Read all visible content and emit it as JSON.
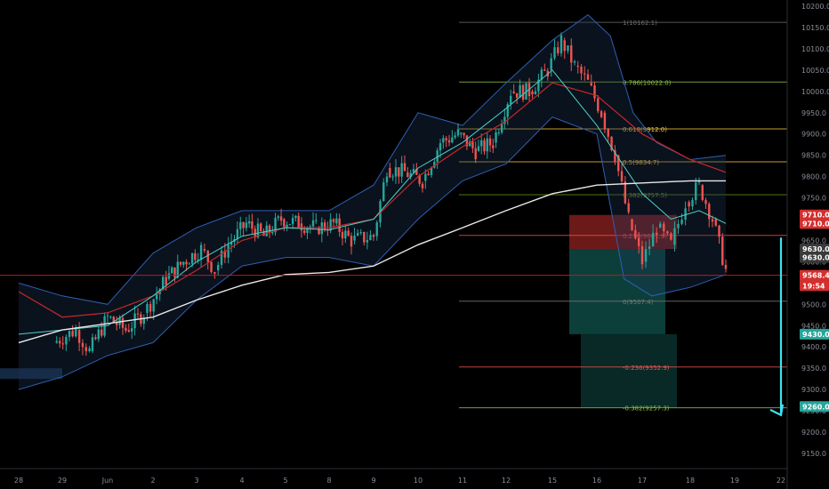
{
  "chart_data": {
    "type": "candlestick",
    "title": "",
    "xlabel": "",
    "ylabel": "",
    "ylim": [
      9120,
      10220
    ],
    "grid": false,
    "x_ticks": [
      "28",
      "29",
      "Jun",
      "2",
      "3",
      "4",
      "5",
      "8",
      "9",
      "10",
      "11",
      "12",
      "15",
      "16",
      "17",
      "18",
      "19",
      "22"
    ],
    "y_ticks": [
      9150.0,
      9200.0,
      9250.0,
      9300.0,
      9350.0,
      9400.0,
      9450.0,
      9500.0,
      9550.0,
      9600.0,
      9650.0,
      9700.0,
      9750.0,
      9800.0,
      9850.0,
      9900.0,
      9950.0,
      10000.0,
      10050.0,
      10100.0,
      10150.0,
      10200.0
    ],
    "y_tick_labels": [
      "9150.0",
      "9200.0",
      "9250.0",
      "9300.0",
      "9350.0",
      "9400.0",
      "9450.0",
      "9500.0",
      "9550.0",
      "9600.0",
      "9650.0",
      "9700.0",
      "9750.0",
      "9800.0",
      "9850.0",
      "9900.0",
      "9950.0",
      "10000.0",
      "10050.0",
      "10100.0",
      "10150.0",
      "10200.0"
    ],
    "colors": {
      "up": "#26a69a",
      "down": "#ef5350",
      "ma_white": "#e8e8e8",
      "ma_red": "#c62828",
      "ma_teal": "#4dd0c8",
      "bollinger": "#2f5fb3",
      "arrow": "#40e0f0",
      "stop_zone": "#7f1d1d",
      "target_zone": "#0e4a44",
      "price_line": "#b71c1c"
    },
    "price_series": {
      "dates": [
        "28",
        "29",
        "Jun",
        "2",
        "3",
        "4",
        "5",
        "8",
        "9",
        "10",
        "11",
        "12",
        "15"
      ],
      "close_path": [
        [
          27.8,
          9410
        ],
        [
          28.3,
          9440
        ],
        [
          28.6,
          9390
        ],
        [
          29.0,
          9470
        ],
        [
          29.4,
          9440
        ],
        [
          29.8,
          9480
        ],
        [
          30.3,
          9560
        ],
        [
          30.7,
          9600
        ],
        [
          31.1,
          9630
        ],
        [
          31.4,
          9580
        ],
        [
          31.7,
          9640
        ],
        [
          32.1,
          9690
        ],
        [
          32.5,
          9660
        ],
        [
          32.9,
          9700
        ],
        [
          33.3,
          9690
        ],
        [
          33.7,
          9680
        ],
        [
          34.1,
          9690
        ],
        [
          34.5,
          9650
        ],
        [
          35.0,
          9660
        ],
        [
          35.3,
          9820
        ],
        [
          35.7,
          9810
        ],
        [
          36.1,
          9790
        ],
        [
          36.5,
          9880
        ],
        [
          36.9,
          9900
        ],
        [
          37.3,
          9860
        ],
        [
          37.7,
          9880
        ],
        [
          38.1,
          10000
        ],
        [
          38.5,
          10000
        ],
        [
          38.9,
          10050
        ],
        [
          39.2,
          10120
        ],
        [
          39.5,
          10060
        ],
        [
          39.8,
          10020
        ],
        [
          40.1,
          9950
        ],
        [
          40.4,
          9850
        ],
        [
          40.7,
          9700
        ],
        [
          41.0,
          9600
        ],
        [
          41.3,
          9680
        ],
        [
          41.6,
          9640
        ],
        [
          41.9,
          9740
        ],
        [
          42.2,
          9780
        ],
        [
          42.5,
          9700
        ],
        [
          42.8,
          9580
        ]
      ],
      "ma_white_path": [
        [
          27.0,
          9410
        ],
        [
          28.0,
          9440
        ],
        [
          29.0,
          9455
        ],
        [
          30.0,
          9470
        ],
        [
          31.0,
          9510
        ],
        [
          32.0,
          9545
        ],
        [
          33.0,
          9570
        ],
        [
          34.0,
          9575
        ],
        [
          35.0,
          9590
        ],
        [
          36.0,
          9640
        ],
        [
          37.0,
          9680
        ],
        [
          38.0,
          9720
        ],
        [
          39.0,
          9760
        ],
        [
          40.0,
          9780
        ],
        [
          41.0,
          9785
        ],
        [
          42.0,
          9790
        ],
        [
          42.8,
          9790
        ]
      ],
      "ma_red_path": [
        [
          27.0,
          9530
        ],
        [
          28.0,
          9470
        ],
        [
          29.0,
          9480
        ],
        [
          30.0,
          9520
        ],
        [
          31.0,
          9580
        ],
        [
          32.0,
          9650
        ],
        [
          33.0,
          9680
        ],
        [
          34.0,
          9680
        ],
        [
          35.0,
          9700
        ],
        [
          36.0,
          9800
        ],
        [
          37.0,
          9870
        ],
        [
          38.0,
          9930
        ],
        [
          39.0,
          10020
        ],
        [
          40.0,
          9990
        ],
        [
          41.0,
          9900
        ],
        [
          42.0,
          9840
        ],
        [
          42.8,
          9810
        ]
      ],
      "ma_teal_path": [
        [
          27.0,
          9430
        ],
        [
          28.0,
          9440
        ],
        [
          29.0,
          9450
        ],
        [
          30.0,
          9520
        ],
        [
          31.0,
          9600
        ],
        [
          32.0,
          9660
        ],
        [
          33.0,
          9680
        ],
        [
          34.0,
          9675
        ],
        [
          35.0,
          9700
        ],
        [
          36.0,
          9820
        ],
        [
          37.0,
          9880
        ],
        [
          38.0,
          9960
        ],
        [
          39.0,
          10050
        ],
        [
          40.0,
          9920
        ],
        [
          41.0,
          9760
        ],
        [
          41.6,
          9700
        ],
        [
          42.2,
          9720
        ],
        [
          42.8,
          9690
        ]
      ],
      "bb_upper_path": [
        [
          27.0,
          9550
        ],
        [
          28.0,
          9520
        ],
        [
          29.0,
          9500
        ],
        [
          30.0,
          9620
        ],
        [
          31.0,
          9680
        ],
        [
          32.0,
          9720
        ],
        [
          33.0,
          9720
        ],
        [
          34.0,
          9720
        ],
        [
          35.0,
          9780
        ],
        [
          36.0,
          9950
        ],
        [
          37.0,
          9920
        ],
        [
          38.0,
          10020
        ],
        [
          39.0,
          10120
        ],
        [
          39.8,
          10180
        ],
        [
          40.3,
          10130
        ],
        [
          40.8,
          9950
        ],
        [
          41.3,
          9880
        ],
        [
          42.0,
          9840
        ],
        [
          42.8,
          9850
        ]
      ],
      "bb_lower_path": [
        [
          27.0,
          9300
        ],
        [
          28.0,
          9330
        ],
        [
          29.0,
          9380
        ],
        [
          30.0,
          9410
        ],
        [
          31.0,
          9510
        ],
        [
          32.0,
          9590
        ],
        [
          33.0,
          9610
        ],
        [
          34.0,
          9610
        ],
        [
          35.0,
          9590
        ],
        [
          36.0,
          9700
        ],
        [
          37.0,
          9790
        ],
        [
          38.0,
          9830
        ],
        [
          39.0,
          9940
        ],
        [
          40.0,
          9900
        ],
        [
          40.6,
          9560
        ],
        [
          41.2,
          9520
        ],
        [
          42.0,
          9540
        ],
        [
          42.8,
          9570
        ]
      ]
    },
    "fib_levels": [
      {
        "label": "1(10162.1)",
        "value": 10162.1,
        "color": "#6b6b6b"
      },
      {
        "label": "0.786(10022.0)",
        "value": 10022.0,
        "color": "#8bc34a"
      },
      {
        "label": "0.618(9912.0)",
        "value": 9912.0,
        "color": "#f6c343"
      },
      {
        "label": "0.5(9834.7)",
        "value": 9834.7,
        "color": "#f6c343"
      },
      {
        "label": "0.382(9757.5)",
        "value": 9757.5,
        "color": "#6b8e23"
      },
      {
        "label": "0.236(9661.9)",
        "value": 9661.9,
        "color": "#ef5350"
      },
      {
        "label": "0(9507.4)",
        "value": 9507.4,
        "color": "#7a7a7a"
      },
      {
        "label": "-0.236(9352.9)",
        "value": 9352.9,
        "color": "#ef5350"
      },
      {
        "label": "-0.382(9257.3)",
        "value": 9257.3,
        "color": "#8bc34a"
      }
    ],
    "position": {
      "entry": 9630.0,
      "stop": 9710.0,
      "target": 9430.0
    },
    "price_tags": [
      {
        "label": "9710.0",
        "value": 9710.0,
        "color": "#d32f2f"
      },
      {
        "label": "9710.0",
        "value": 9690.0,
        "color": "#d32f2f"
      },
      {
        "label": "9630.0",
        "value": 9630.0,
        "color": "#3a3a3a"
      },
      {
        "label": "9630.0",
        "value": 9610.0,
        "color": "#3a3a3a"
      },
      {
        "label": "9568.4",
        "value": 9568.4,
        "color": "#d32f2f"
      },
      {
        "label": "19:54",
        "value": 9544.0,
        "color": "#d32f2f"
      },
      {
        "label": "9430.0",
        "value": 9430.0,
        "color": "#26a69a"
      },
      {
        "label": "9260.0",
        "value": 9260.0,
        "color": "#26a69a"
      }
    ],
    "current_price": 9568.4,
    "arrow_path": [
      [
        44.1,
        9592
      ],
      [
        45.2,
        9655
      ],
      [
        48.9,
        9240
      ]
    ]
  }
}
